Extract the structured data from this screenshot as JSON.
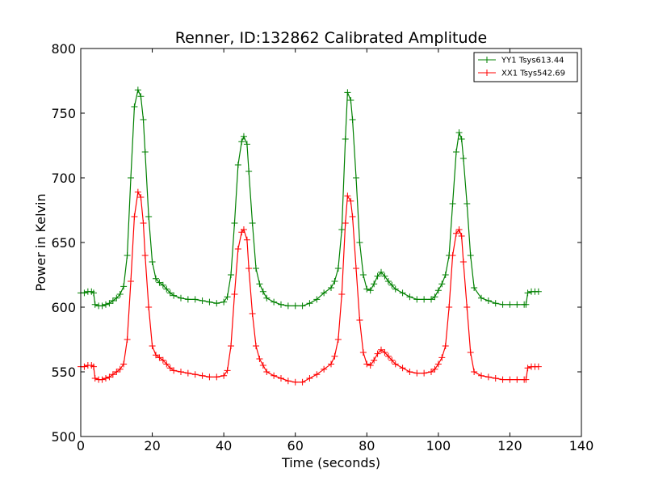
{
  "chart_data": {
    "type": "line",
    "title": "Renner, ID:132862 Calibrated Amplitude",
    "xlabel": "Time (seconds)",
    "ylabel": "Power in Kelvin",
    "xlim": [
      0,
      140
    ],
    "ylim": [
      500,
      800
    ],
    "xticks": [
      "0",
      "20",
      "40",
      "60",
      "80",
      "100",
      "120",
      "140"
    ],
    "yticks": [
      "500",
      "550",
      "600",
      "650",
      "700",
      "750",
      "800"
    ],
    "grid": false,
    "legend_position": "top-right",
    "marker": "+",
    "series": [
      {
        "name": "YY1 Tsys613.44",
        "color": "#008000",
        "x": [
          0,
          1,
          2,
          3,
          3.6,
          4,
          5,
          6,
          7,
          8,
          9,
          10,
          11,
          12,
          13,
          14,
          15,
          16,
          16.8,
          17.5,
          18,
          19,
          20,
          21,
          22,
          23,
          24,
          25,
          26,
          28,
          30,
          32,
          34,
          36,
          38,
          40,
          41,
          42,
          43,
          44,
          45,
          45.6,
          46.5,
          47,
          48,
          49,
          50,
          51,
          52,
          54,
          56,
          58,
          60,
          62,
          64,
          66,
          68,
          70,
          71,
          72,
          73,
          74,
          74.6,
          75.5,
          76,
          77,
          78,
          79,
          80,
          81,
          82,
          83,
          84,
          85,
          86,
          87,
          88,
          90,
          92,
          94,
          96,
          98,
          99,
          100,
          101,
          102,
          103,
          104,
          105,
          105.8,
          106.5,
          107,
          108,
          109,
          110,
          112,
          114,
          116,
          118,
          120,
          122,
          124,
          124.5,
          125,
          126,
          127,
          128
        ],
        "values": [
          611,
          611,
          612,
          612,
          611,
          602,
          601,
          601,
          602,
          603,
          605,
          607,
          610,
          616,
          640,
          700,
          755,
          768,
          763,
          745,
          720,
          670,
          635,
          622,
          619,
          617,
          614,
          611,
          609,
          607,
          606,
          606,
          605,
          604,
          603,
          604,
          608,
          625,
          665,
          710,
          728,
          732,
          726,
          705,
          665,
          630,
          618,
          612,
          607,
          604,
          602,
          601,
          601,
          601,
          603,
          606,
          611,
          615,
          620,
          630,
          660,
          730,
          766,
          760,
          745,
          700,
          650,
          625,
          614,
          613,
          618,
          624,
          627,
          624,
          620,
          617,
          614,
          611,
          608,
          606,
          606,
          606,
          608,
          613,
          618,
          625,
          640,
          680,
          720,
          735,
          730,
          715,
          680,
          640,
          615,
          607,
          605,
          603,
          602,
          602,
          602,
          602,
          602,
          611,
          612,
          612,
          612
        ]
      },
      {
        "name": "XX1 Tsys542.69",
        "color": "#ff0000",
        "x": [
          0,
          1,
          2,
          3,
          3.6,
          4,
          5,
          6,
          7,
          8,
          9,
          10,
          11,
          12,
          13,
          14,
          15,
          16,
          16.8,
          17.5,
          18,
          19,
          20,
          21,
          22,
          23,
          24,
          25,
          26,
          28,
          30,
          32,
          34,
          36,
          38,
          40,
          41,
          42,
          43,
          44,
          45,
          45.6,
          46.5,
          47,
          48,
          49,
          50,
          51,
          52,
          54,
          56,
          58,
          60,
          62,
          64,
          66,
          68,
          70,
          71,
          72,
          73,
          74,
          74.6,
          75.5,
          76,
          77,
          78,
          79,
          80,
          81,
          82,
          83,
          84,
          85,
          86,
          87,
          88,
          90,
          92,
          94,
          96,
          98,
          99,
          100,
          101,
          102,
          103,
          104,
          105,
          105.8,
          106.5,
          107,
          108,
          109,
          110,
          112,
          114,
          116,
          118,
          120,
          122,
          124,
          124.5,
          125,
          126,
          127,
          128
        ],
        "values": [
          554,
          554,
          555,
          555,
          554,
          545,
          544,
          544,
          545,
          546,
          548,
          550,
          552,
          556,
          575,
          620,
          670,
          689,
          685,
          665,
          640,
          600,
          570,
          563,
          561,
          559,
          556,
          553,
          551,
          550,
          549,
          548,
          547,
          546,
          546,
          547,
          551,
          570,
          610,
          645,
          658,
          660,
          652,
          630,
          595,
          570,
          560,
          555,
          550,
          547,
          545,
          543,
          542,
          542,
          545,
          548,
          552,
          556,
          562,
          575,
          610,
          665,
          686,
          682,
          670,
          630,
          590,
          565,
          556,
          555,
          559,
          564,
          567,
          565,
          562,
          559,
          556,
          553,
          550,
          549,
          549,
          550,
          552,
          556,
          561,
          570,
          600,
          640,
          657,
          660,
          655,
          635,
          600,
          565,
          550,
          547,
          546,
          545,
          544,
          544,
          544,
          544,
          544,
          553,
          554,
          554,
          554
        ]
      }
    ]
  }
}
